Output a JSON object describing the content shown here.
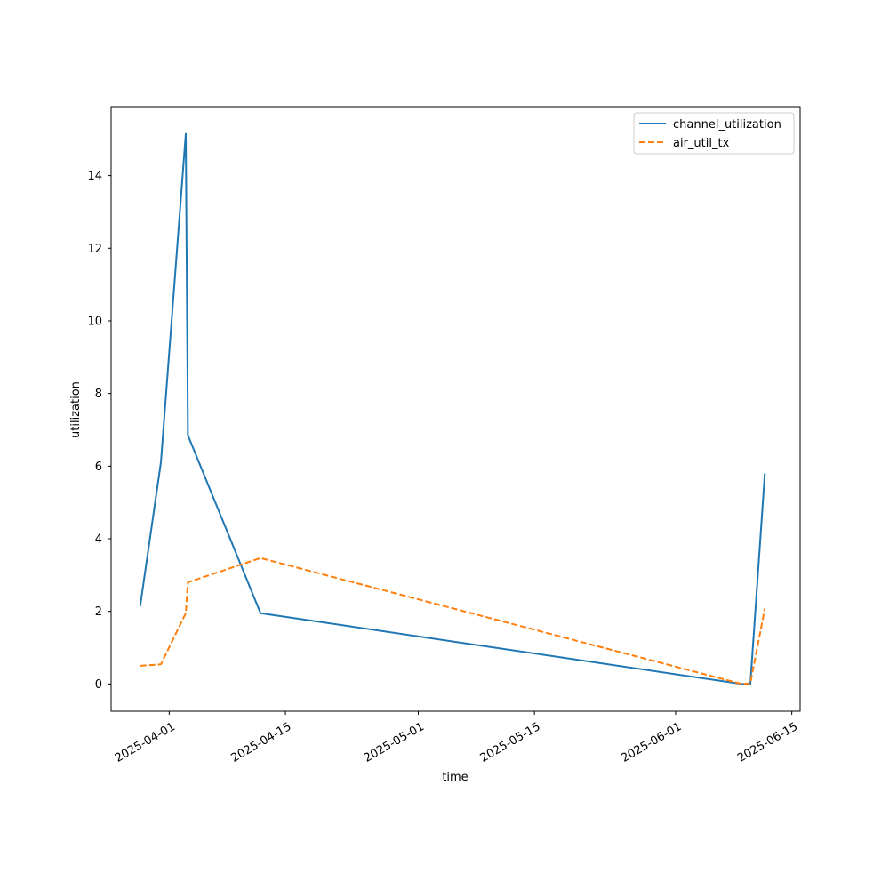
{
  "chart_data": {
    "type": "line",
    "title": "",
    "xlabel": "time",
    "ylabel": "utilization",
    "x_tick_labels": [
      "2025-04-01",
      "2025-04-15",
      "2025-05-01",
      "2025-05-15",
      "2025-06-01",
      "2025-06-15"
    ],
    "y_tick_labels": [
      "0",
      "2",
      "4",
      "6",
      "8",
      "10",
      "12",
      "14"
    ],
    "xlim": [
      "2025-03-25",
      "2025-06-16"
    ],
    "ylim": [
      -0.75,
      15.9
    ],
    "grid": false,
    "legend_position": "top-right",
    "series": [
      {
        "name": "channel_utilization",
        "color": "#1f77b4",
        "style": "solid",
        "points": [
          {
            "x": "2025-03-28T12:00",
            "y": 2.14
          },
          {
            "x": "2025-03-31T00:00",
            "y": 6.1
          },
          {
            "x": "2025-04-03T00:00",
            "y": 15.15
          },
          {
            "x": "2025-04-03T06:00",
            "y": 6.85
          },
          {
            "x": "2025-04-12T00:00",
            "y": 1.95
          },
          {
            "x": "2025-06-09T00:00",
            "y": 0.0
          },
          {
            "x": "2025-06-10T00:00",
            "y": 0.0
          },
          {
            "x": "2025-06-11T18:00",
            "y": 5.8
          }
        ]
      },
      {
        "name": "air_util_tx",
        "color": "#ff7f0e",
        "style": "dashed",
        "points": [
          {
            "x": "2025-03-28T12:00",
            "y": 0.5
          },
          {
            "x": "2025-03-31T00:00",
            "y": 0.54
          },
          {
            "x": "2025-04-03T00:00",
            "y": 1.95
          },
          {
            "x": "2025-04-03T06:00",
            "y": 2.8
          },
          {
            "x": "2025-04-12T00:00",
            "y": 3.47
          },
          {
            "x": "2025-06-09T00:00",
            "y": 0.0
          },
          {
            "x": "2025-06-10T00:00",
            "y": 0.02
          },
          {
            "x": "2025-06-11T18:00",
            "y": 2.08
          }
        ]
      }
    ]
  }
}
